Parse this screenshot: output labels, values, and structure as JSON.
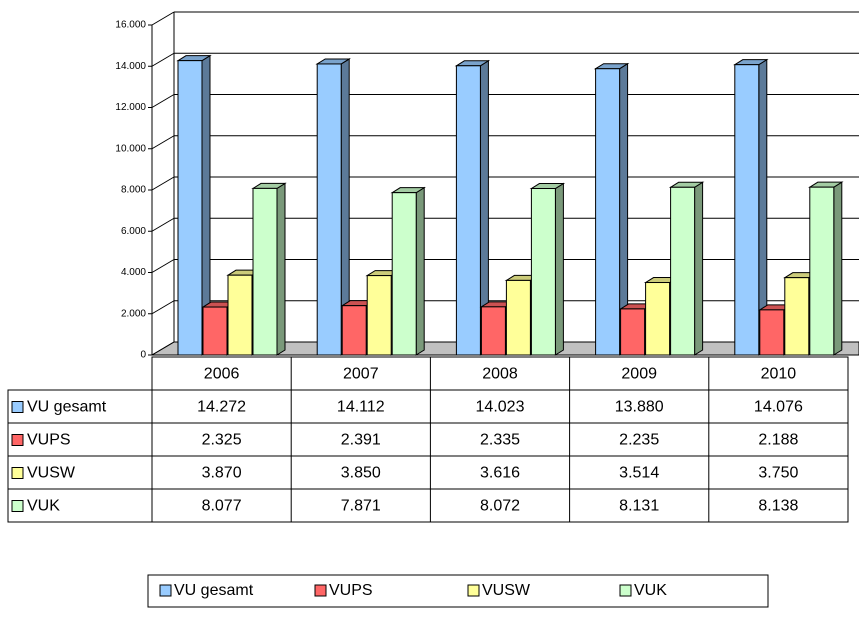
{
  "chart_data": {
    "type": "bar3d",
    "categories": [
      "2006",
      "2007",
      "2008",
      "2009",
      "2010"
    ],
    "series": [
      {
        "name": "VU gesamt",
        "color": "#99ccff",
        "values": [
          14272,
          14112,
          14023,
          13880,
          14076
        ],
        "value_labels": [
          "14.272",
          "14.112",
          "14.023",
          "13.880",
          "14.076"
        ]
      },
      {
        "name": "VUPS",
        "color": "#ff6666",
        "values": [
          2325,
          2391,
          2335,
          2235,
          2188
        ],
        "value_labels": [
          "2.325",
          "2.391",
          "2.335",
          "2.235",
          "2.188"
        ]
      },
      {
        "name": "VUSW",
        "color": "#ffff99",
        "values": [
          3870,
          3850,
          3616,
          3514,
          3750
        ],
        "value_labels": [
          "3.870",
          "3.850",
          "3.616",
          "3.514",
          "3.750"
        ]
      },
      {
        "name": "VUK",
        "color": "#ccffcc",
        "values": [
          8077,
          7871,
          8072,
          8131,
          8138
        ],
        "value_labels": [
          "8.077",
          "7.871",
          "8.072",
          "8.131",
          "8.138"
        ]
      }
    ],
    "ylim": [
      0,
      16000
    ],
    "yticks": [
      0,
      {
        "value": 2000,
        "label": "2.000"
      },
      {
        "value": 4000,
        "label": "4.000"
      },
      {
        "value": 6000,
        "label": "6.000"
      },
      {
        "value": 8000,
        "label": "8.000"
      },
      {
        "value": 10000,
        "label": "10.000"
      },
      {
        "value": 12000,
        "label": "12.000"
      },
      {
        "value": 14000,
        "label": "14.000"
      },
      {
        "value": 16000,
        "label": "16.000"
      }
    ],
    "grid": true,
    "legend": "bottom"
  }
}
